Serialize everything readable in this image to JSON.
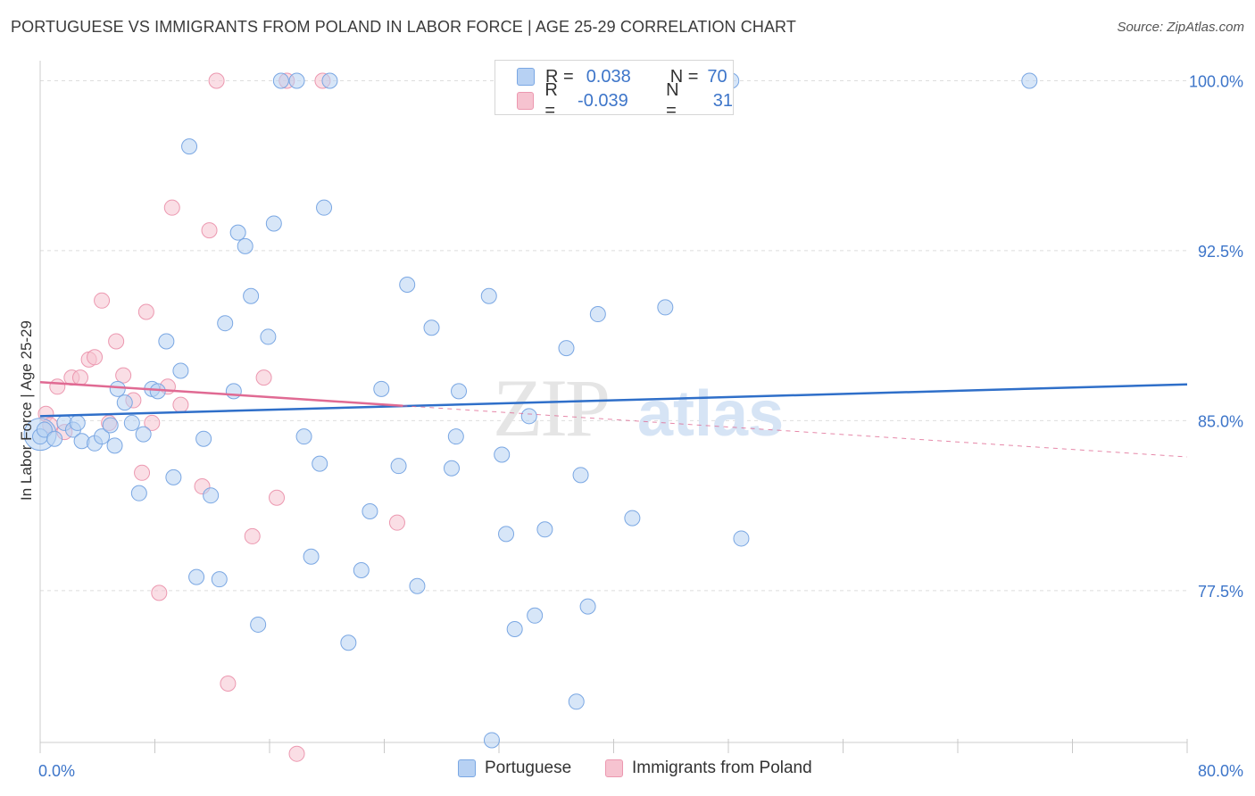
{
  "header": {
    "title": "PORTUGUESE VS IMMIGRANTS FROM POLAND IN LABOR FORCE | AGE 25-29 CORRELATION CHART",
    "source": "Source: ZipAtlas.com"
  },
  "stats": {
    "rows": [
      {
        "r_label": "R =",
        "r_value": "0.038",
        "n_label": "N =",
        "n_value": "70"
      },
      {
        "r_label": "R =",
        "r_value": "-0.039",
        "n_label": "N =",
        "n_value": "31"
      }
    ]
  },
  "legend": {
    "portuguese": "Portuguese",
    "poland": "Immigrants from Poland"
  },
  "colors": {
    "blue_fill": "#b7d1f3",
    "blue_stroke": "#7aa7e3",
    "blue_line": "#2f6fc9",
    "pink_fill": "#f6c3d0",
    "pink_stroke": "#ec98b0",
    "pink_line": "#e06a93",
    "tick_label": "#3d75c9",
    "grid": "#dddddd"
  },
  "chart_data": {
    "type": "scatter",
    "title": "PORTUGUESE VS IMMIGRANTS FROM POLAND IN LABOR FORCE | AGE 25-29 CORRELATION CHART",
    "xlabel": "",
    "ylabel": "In Labor Force | Age 25-29",
    "xlim": [
      0,
      80
    ],
    "ylim": [
      70.8,
      101.2
    ],
    "x_tick_labels": [
      "0.0%",
      "80.0%"
    ],
    "y_ticks": [
      77.5,
      85.0,
      92.5,
      100.0
    ],
    "y_tick_labels": [
      "77.5%",
      "85.0%",
      "92.5%",
      "100.0%"
    ],
    "grid": true,
    "watermark": "ZIPatlas",
    "series": [
      {
        "name": "Portuguese",
        "r": 0.038,
        "n": 70,
        "trend": {
          "x0": 0,
          "y0": 85.2,
          "x1": 80,
          "y1": 86.6,
          "dashed_from": null
        },
        "points": [
          [
            0.0,
            84.3
          ],
          [
            0.3,
            84.6
          ],
          [
            1.0,
            84.2
          ],
          [
            1.7,
            84.9
          ],
          [
            2.3,
            84.6
          ],
          [
            2.9,
            84.1
          ],
          [
            3.8,
            84.0
          ],
          [
            4.3,
            84.3
          ],
          [
            4.9,
            84.8
          ],
          [
            5.4,
            86.4
          ],
          [
            5.9,
            85.8
          ],
          [
            6.4,
            84.9
          ],
          [
            6.9,
            81.8
          ],
          [
            7.2,
            84.4
          ],
          [
            7.8,
            86.4
          ],
          [
            8.2,
            86.3
          ],
          [
            8.8,
            88.5
          ],
          [
            9.3,
            82.5
          ],
          [
            9.8,
            87.2
          ],
          [
            10.4,
            97.1
          ],
          [
            10.9,
            78.1
          ],
          [
            11.4,
            84.2
          ],
          [
            11.9,
            81.7
          ],
          [
            12.5,
            78.0
          ],
          [
            12.9,
            89.3
          ],
          [
            13.5,
            86.3
          ],
          [
            13.8,
            93.3
          ],
          [
            14.3,
            92.7
          ],
          [
            14.7,
            90.5
          ],
          [
            15.2,
            76.0
          ],
          [
            15.9,
            88.7
          ],
          [
            16.3,
            93.7
          ],
          [
            16.8,
            100.0
          ],
          [
            17.9,
            100.0
          ],
          [
            18.4,
            84.3
          ],
          [
            18.9,
            79.0
          ],
          [
            19.5,
            83.1
          ],
          [
            19.8,
            94.4
          ],
          [
            20.2,
            100.0
          ],
          [
            21.5,
            75.2
          ],
          [
            22.4,
            78.4
          ],
          [
            23.0,
            81.0
          ],
          [
            23.8,
            86.4
          ],
          [
            25.0,
            83.0
          ],
          [
            25.6,
            91.0
          ],
          [
            26.3,
            77.7
          ],
          [
            27.3,
            89.1
          ],
          [
            28.7,
            82.9
          ],
          [
            29.0,
            84.3
          ],
          [
            29.2,
            86.3
          ],
          [
            31.3,
            90.5
          ],
          [
            31.5,
            70.9
          ],
          [
            32.2,
            83.5
          ],
          [
            32.5,
            80.0
          ],
          [
            33.1,
            75.8
          ],
          [
            34.1,
            85.2
          ],
          [
            34.5,
            76.4
          ],
          [
            35.2,
            80.2
          ],
          [
            36.7,
            88.2
          ],
          [
            37.4,
            72.6
          ],
          [
            37.7,
            82.6
          ],
          [
            38.2,
            76.8
          ],
          [
            38.9,
            89.7
          ],
          [
            41.3,
            80.7
          ],
          [
            43.6,
            90.0
          ],
          [
            48.2,
            100.0
          ],
          [
            48.9,
            79.8
          ],
          [
            69.0,
            100.0
          ],
          [
            2.6,
            84.9
          ],
          [
            5.2,
            83.9
          ]
        ]
      },
      {
        "name": "Immigrants from Poland",
        "r": -0.039,
        "n": 31,
        "trend": {
          "x0": 0,
          "y0": 86.7,
          "x1": 80,
          "y1": 83.4,
          "solid_until": 25.3
        },
        "points": [
          [
            0.4,
            85.3
          ],
          [
            0.7,
            84.8
          ],
          [
            1.2,
            86.5
          ],
          [
            1.7,
            84.5
          ],
          [
            2.2,
            86.9
          ],
          [
            2.8,
            86.9
          ],
          [
            3.4,
            87.7
          ],
          [
            3.8,
            87.8
          ],
          [
            4.3,
            90.3
          ],
          [
            4.8,
            84.9
          ],
          [
            5.3,
            88.5
          ],
          [
            5.8,
            87.0
          ],
          [
            6.5,
            85.9
          ],
          [
            7.1,
            82.7
          ],
          [
            7.4,
            89.8
          ],
          [
            7.8,
            84.9
          ],
          [
            8.3,
            77.4
          ],
          [
            8.9,
            86.5
          ],
          [
            9.2,
            94.4
          ],
          [
            9.8,
            85.7
          ],
          [
            11.3,
            82.1
          ],
          [
            11.8,
            93.4
          ],
          [
            12.3,
            100.0
          ],
          [
            13.1,
            73.4
          ],
          [
            14.8,
            79.9
          ],
          [
            15.6,
            86.9
          ],
          [
            16.5,
            81.6
          ],
          [
            17.2,
            100.0
          ],
          [
            17.9,
            70.3
          ],
          [
            19.7,
            100.0
          ],
          [
            24.9,
            80.5
          ]
        ]
      }
    ]
  }
}
